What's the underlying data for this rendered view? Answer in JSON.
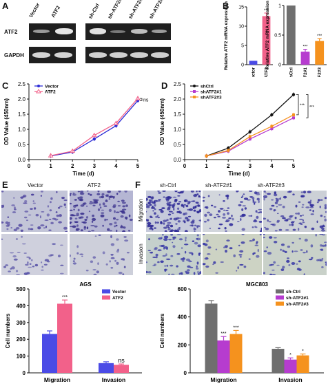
{
  "panels": {
    "a": "A",
    "b": "B",
    "c": "C",
    "d": "D",
    "e": "E",
    "f": "F"
  },
  "panel_a": {
    "lanes_left": [
      "Vector",
      "ATF2"
    ],
    "lanes_right": [
      "sh-Ctrl",
      "sh-ATF2#1",
      "sh-ATF2#2",
      "sh-ATF2#3"
    ],
    "rows": [
      "ATF2",
      "GAPDH"
    ]
  },
  "panel_e": {
    "cols": [
      "Vector",
      "ATF2"
    ],
    "rows": [
      "Migration",
      "Invasion"
    ]
  },
  "panel_f": {
    "cols": [
      "sh-Ctrl",
      "sh-ATF2#1",
      "sh-ATF2#3"
    ],
    "rows": [
      "Migration",
      "Invasion"
    ]
  },
  "colors": {
    "blue": "#4b4be6",
    "pink": "#f2618a",
    "grey": "#6f6f6f",
    "purple": "#b63ccf",
    "orange": "#f5921e",
    "black": "#111111"
  },
  "chart_data": [
    {
      "id": "b1",
      "type": "bar",
      "categories": [
        "Vector",
        "ATF2"
      ],
      "values": [
        1.0,
        12.6
      ],
      "errors": [
        0,
        0.8
      ],
      "colors": [
        "#4b4be6",
        "#f2618a"
      ],
      "sig": [
        "",
        "***"
      ],
      "ylabel": "Relative ATF2 mRNA expression",
      "ylim": [
        0,
        15
      ],
      "yticks": [
        0,
        5,
        10,
        15
      ]
    },
    {
      "id": "b2",
      "type": "bar",
      "categories": [
        "shCtrl",
        "shATF2#1",
        "shATF2#3"
      ],
      "values": [
        1.0,
        0.22,
        0.4
      ],
      "errors": [
        0,
        0.04,
        0.04
      ],
      "colors": [
        "#6f6f6f",
        "#b63ccf",
        "#f5921e"
      ],
      "sig": [
        "",
        "***",
        "***"
      ],
      "ylabel": "Relative ATF2 mRNA expression",
      "ylim": [
        0,
        1.0
      ],
      "yticks": [
        0.0,
        0.5,
        1.0
      ]
    },
    {
      "id": "c",
      "type": "line",
      "x": [
        1,
        2,
        3,
        4,
        5
      ],
      "series": [
        {
          "name": "Vector",
          "values": [
            0.12,
            0.25,
            0.68,
            1.12,
            1.95
          ],
          "color": "#2b2bd6",
          "marker": "circle"
        },
        {
          "name": "ATF2",
          "values": [
            0.13,
            0.28,
            0.8,
            1.2,
            2.02
          ],
          "color": "#f2618a",
          "marker": "triangle"
        }
      ],
      "xlabel": "Time (d)",
      "ylabel": "OD Value (450nm)",
      "xlim": [
        0,
        5
      ],
      "ylim": [
        0,
        2.5
      ],
      "xticks": [
        0,
        1,
        2,
        3,
        4,
        5
      ],
      "yticks": [
        0.0,
        0.5,
        1.0,
        1.5,
        2.0,
        2.5
      ],
      "annotation": "ns",
      "legend": "top-left"
    },
    {
      "id": "d",
      "type": "line",
      "x": [
        1,
        2,
        3,
        4,
        5
      ],
      "series": [
        {
          "name": "shCtrl",
          "values": [
            0.12,
            0.38,
            0.92,
            1.48,
            2.15
          ],
          "color": "#111111",
          "marker": "circle"
        },
        {
          "name": "shATF2#1",
          "values": [
            0.12,
            0.28,
            0.68,
            1.02,
            1.38
          ],
          "color": "#b63ccf",
          "marker": "square"
        },
        {
          "name": "shATF2#3",
          "values": [
            0.12,
            0.3,
            0.76,
            1.1,
            1.48
          ],
          "color": "#f5921e",
          "marker": "square"
        }
      ],
      "xlabel": "Time (d)",
      "ylabel": "OD Value (450nm)",
      "xlim": [
        0,
        5
      ],
      "ylim": [
        0,
        2.5
      ],
      "xticks": [
        0,
        1,
        2,
        3,
        4,
        5
      ],
      "yticks": [
        0.0,
        0.5,
        1.0,
        1.5,
        2.0,
        2.5
      ],
      "annotations": [
        "***",
        "***"
      ],
      "legend": "top-left"
    },
    {
      "id": "ags",
      "type": "bar",
      "title": "AGS",
      "categories": [
        "Migration",
        "Invasion"
      ],
      "series": [
        {
          "name": "Vector",
          "values": [
            232,
            58
          ],
          "errors": [
            18,
            8
          ],
          "color": "#4b4be6"
        },
        {
          "name": "ATF2",
          "values": [
            412,
            48
          ],
          "errors": [
            22,
            5
          ],
          "color": "#f2618a"
        }
      ],
      "sig": [
        [
          "",
          "***"
        ],
        [
          "",
          "ns"
        ]
      ],
      "ylabel": "Cell numbers",
      "ylim": [
        0,
        500
      ],
      "yticks": [
        0,
        100,
        200,
        300,
        400,
        500
      ],
      "legend": "top-right"
    },
    {
      "id": "mgc",
      "type": "bar",
      "title": "MGC803",
      "categories": [
        "Migration",
        "Invasion"
      ],
      "series": [
        {
          "name": "sh-Ctrl",
          "values": [
            495,
            172
          ],
          "errors": [
            22,
            8
          ],
          "color": "#6f6f6f"
        },
        {
          "name": "sh-ATF2#1",
          "values": [
            232,
            95
          ],
          "errors": [
            28,
            12
          ],
          "color": "#b63ccf"
        },
        {
          "name": "sh-ATF2#3",
          "values": [
            278,
            125
          ],
          "errors": [
            25,
            10
          ],
          "color": "#f5921e"
        }
      ],
      "sig": [
        [
          "",
          "***",
          "***"
        ],
        [
          "",
          "*",
          "*"
        ]
      ],
      "ylabel": "Cell numbers",
      "ylim": [
        0,
        600
      ],
      "yticks": [
        0,
        200,
        400,
        600
      ],
      "legend": "top-right"
    }
  ]
}
